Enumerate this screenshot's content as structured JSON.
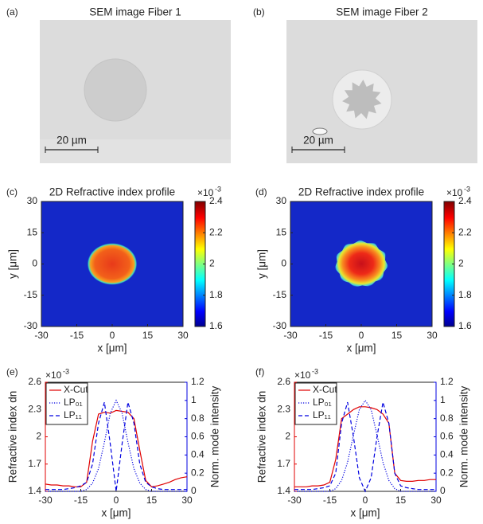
{
  "chart_data": [
    {
      "type": "image",
      "label": "(a)",
      "title": "SEM image Fiber 1",
      "scale_bar": "20 µm",
      "shape": "circle"
    },
    {
      "type": "image",
      "label": "(b)",
      "title": "SEM image Fiber 2",
      "scale_bar": "20 µm",
      "shape": "star"
    },
    {
      "type": "heatmap",
      "label": "(c)",
      "title": "2D Refractive index profile",
      "xlabel": "x [μm]",
      "ylabel": "y [μm]",
      "xlim": [
        -30,
        30
      ],
      "ylim": [
        -30,
        30
      ],
      "xticks": [
        -30,
        -15,
        0,
        15,
        30
      ],
      "yticks": [
        -30,
        -15,
        0,
        15,
        30
      ],
      "shape": "ellipse",
      "colorbar": {
        "lim": [
          1.6,
          2.4
        ],
        "ticks": [
          1.6,
          1.8,
          2,
          2.2,
          2.4
        ],
        "multiplier": "×10",
        "exponent": "-3"
      }
    },
    {
      "type": "heatmap",
      "label": "(d)",
      "title": "2D Refractive index profile",
      "xlabel": "x [μm]",
      "ylabel": "y [μm]",
      "xlim": [
        -30,
        30
      ],
      "ylim": [
        -30,
        30
      ],
      "xticks": [
        -30,
        -15,
        0,
        15,
        30
      ],
      "yticks": [
        -30,
        -15,
        0,
        15,
        30
      ],
      "shape": "star",
      "colorbar": {
        "lim": [
          1.6,
          2.4
        ],
        "ticks": [
          1.6,
          1.8,
          2,
          2.2,
          2.4
        ],
        "multiplier": "×10",
        "exponent": "-3"
      }
    },
    {
      "type": "line",
      "label": "(e)",
      "xlabel": "x [μm]",
      "ylabel": "Refractive index dn",
      "y2label": "Norm. mode intensity",
      "multiplier": "×10",
      "exponent": "-3",
      "xlim": [
        -30,
        30
      ],
      "xticks": [
        -30,
        -15,
        0,
        15,
        30
      ],
      "ylim": [
        1.4,
        2.6
      ],
      "yticks": [
        1.4,
        1.7,
        2,
        2.3,
        2.6
      ],
      "y2lim": [
        0,
        1.2
      ],
      "y2ticks": [
        0,
        0.2,
        0.4,
        0.6,
        0.8,
        1,
        1.2
      ],
      "x": [
        -30,
        -27.5,
        -25,
        -22.5,
        -20,
        -17.5,
        -15,
        -12.5,
        -10,
        -7.5,
        -5,
        -2.5,
        0,
        2.5,
        5,
        7.5,
        10,
        12.5,
        15,
        17.5,
        20,
        22.5,
        25,
        27.5,
        30
      ],
      "series": [
        {
          "name": "X-Cut",
          "color": "#e00000",
          "style": "solid",
          "axis": "y",
          "values": [
            1.48,
            1.47,
            1.47,
            1.46,
            1.46,
            1.45,
            1.45,
            1.5,
            1.95,
            2.25,
            2.27,
            2.26,
            2.29,
            2.28,
            2.27,
            2.2,
            1.85,
            1.52,
            1.45,
            1.46,
            1.48,
            1.5,
            1.53,
            1.55,
            1.56
          ]
        },
        {
          "name": "LP₀₁",
          "color": "#0000e0",
          "style": "dotted",
          "axis": "y2",
          "values": [
            0,
            0,
            0,
            0,
            0,
            0,
            0,
            0.02,
            0.09,
            0.25,
            0.54,
            0.86,
            1,
            0.86,
            0.54,
            0.25,
            0.09,
            0.02,
            0,
            0,
            0,
            0,
            0,
            0,
            0
          ]
        },
        {
          "name": "LP₁₁",
          "color": "#0000e0",
          "style": "dashed",
          "axis": "y2",
          "values": [
            0.02,
            0.02,
            0.02,
            0.02,
            0.03,
            0.04,
            0.06,
            0.1,
            0.3,
            0.75,
            0.98,
            0.52,
            0,
            0.52,
            0.98,
            0.75,
            0.3,
            0.1,
            0.05,
            0.03,
            0.02,
            0.02,
            0.02,
            0.02,
            0.02
          ]
        }
      ]
    },
    {
      "type": "line",
      "label": "(f)",
      "xlabel": "x [μm]",
      "ylabel": "Refractive index dn",
      "y2label": "Norm. mode intensity",
      "multiplier": "×10",
      "exponent": "-3",
      "xlim": [
        -30,
        30
      ],
      "xticks": [
        -30,
        -15,
        0,
        15,
        30
      ],
      "ylim": [
        1.4,
        2.6
      ],
      "yticks": [
        1.4,
        1.7,
        2,
        2.3,
        2.6
      ],
      "y2lim": [
        0,
        1.2
      ],
      "y2ticks": [
        0,
        0.2,
        0.4,
        0.6,
        0.8,
        1,
        1.2
      ],
      "x": [
        -30,
        -27.5,
        -25,
        -22.5,
        -20,
        -17.5,
        -15,
        -12.5,
        -10,
        -7.5,
        -5,
        -2.5,
        0,
        2.5,
        5,
        7.5,
        10,
        12.5,
        15,
        17.5,
        20,
        22.5,
        25,
        27.5,
        30
      ],
      "series": [
        {
          "name": "X-Cut",
          "color": "#e00000",
          "style": "solid",
          "axis": "y",
          "values": [
            1.45,
            1.45,
            1.45,
            1.46,
            1.46,
            1.47,
            1.5,
            1.75,
            2.2,
            2.25,
            2.3,
            2.33,
            2.33,
            2.32,
            2.3,
            2.25,
            2.15,
            1.6,
            1.52,
            1.51,
            1.51,
            1.52,
            1.52,
            1.53,
            1.53
          ]
        },
        {
          "name": "LP₀₁",
          "color": "#0000e0",
          "style": "dotted",
          "axis": "y2",
          "values": [
            0,
            0,
            0,
            0,
            0,
            0,
            0,
            0.03,
            0.12,
            0.32,
            0.62,
            0.9,
            1,
            0.9,
            0.62,
            0.32,
            0.12,
            0.03,
            0,
            0,
            0,
            0,
            0,
            0,
            0
          ]
        },
        {
          "name": "LP₁₁",
          "color": "#0000e0",
          "style": "dashed",
          "axis": "y2",
          "values": [
            0.02,
            0.02,
            0.02,
            0.02,
            0.03,
            0.04,
            0.06,
            0.2,
            0.75,
            0.98,
            0.6,
            0.15,
            0,
            0.15,
            0.6,
            0.98,
            0.75,
            0.2,
            0.06,
            0.04,
            0.03,
            0.02,
            0.02,
            0.02,
            0.02
          ]
        }
      ]
    }
  ]
}
